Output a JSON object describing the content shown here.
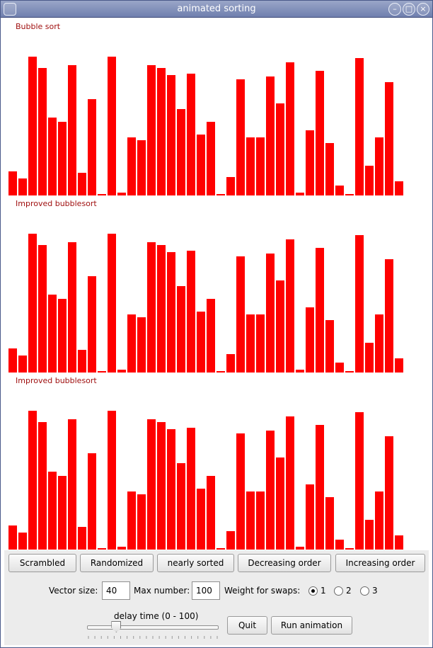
{
  "window": {
    "title": "animated sorting"
  },
  "panels": [
    {
      "label": "Bubble sort"
    },
    {
      "label": "Improved bubblesort"
    },
    {
      "label": "Improved bubblesort"
    }
  ],
  "bars": {
    "values": [
      17,
      12,
      98,
      90,
      55,
      52,
      92,
      16,
      68,
      1,
      98,
      2,
      41,
      39,
      92,
      90,
      85,
      61,
      86,
      43,
      52,
      1,
      13,
      82,
      41,
      41,
      84,
      65,
      94,
      2,
      46,
      88,
      37,
      7,
      1,
      97,
      21,
      41,
      80,
      10
    ],
    "max": 100,
    "color": "#ff0000"
  },
  "buttons": {
    "scrambled": "Scrambled",
    "randomized": "Randomized",
    "nearly_sorted": "nearly sorted",
    "decreasing": "Decreasing order",
    "increasing": "Increasing order",
    "quit": "Quit",
    "run": "Run animation"
  },
  "settings": {
    "vector_size_label": "Vector size:",
    "vector_size": "40",
    "max_number_label": "Max number:",
    "max_number": "100",
    "weight_label": "Weight for swaps:",
    "weights": [
      "1",
      "2",
      "3"
    ],
    "weight_selected": "1",
    "delay_label": "delay time (0 - 100)",
    "delay_value": 20
  }
}
